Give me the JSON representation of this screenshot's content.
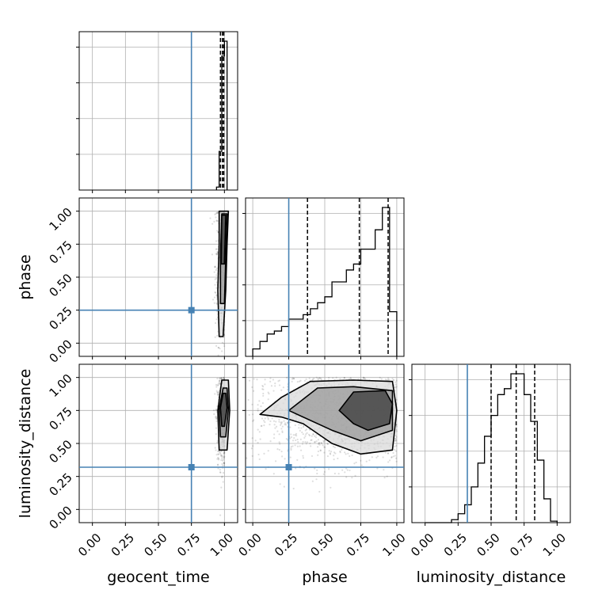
{
  "chart_data": {
    "type": "corner",
    "parameters": [
      "geocent_time",
      "phase",
      "luminosity_distance"
    ],
    "xlabels": [
      "geocent_time",
      "phase",
      "luminosity_distance"
    ],
    "ylabels": [
      "phase",
      "luminosity_distance"
    ],
    "tick_labels": [
      "0.00",
      "0.25",
      "0.50",
      "0.75",
      "1.00"
    ],
    "tick_values": [
      0,
      0.25,
      0.5,
      0.75,
      1.0
    ],
    "truths": {
      "geocent_time": 0.75,
      "phase": 0.25,
      "luminosity_distance": 0.32
    },
    "colors": {
      "truth": "#4682b4",
      "contour": "#000000",
      "grid": "#b0b0b0"
    },
    "grid": true,
    "histograms": [
      {
        "param": "geocent_time",
        "xlim": [
          -0.1,
          1.1
        ],
        "bin_edges": [
          0.94,
          0.96,
          0.98,
          1.0,
          1.02
        ],
        "counts": [
          0.02,
          0.26,
          0.9,
          1.0
        ],
        "quantiles": [
          0.97,
          0.985,
          0.995
        ]
      },
      {
        "param": "phase",
        "xlim": [
          -0.05,
          1.05
        ],
        "bin_edges": [
          0.0,
          0.05,
          0.1,
          0.15,
          0.2,
          0.25,
          0.3,
          0.35,
          0.4,
          0.45,
          0.5,
          0.55,
          0.6,
          0.65,
          0.7,
          0.75,
          0.8,
          0.85,
          0.9,
          0.95,
          1.0
        ],
        "counts": [
          0.05,
          0.1,
          0.15,
          0.17,
          0.2,
          0.25,
          0.25,
          0.28,
          0.32,
          0.36,
          0.4,
          0.5,
          0.5,
          0.58,
          0.62,
          0.72,
          0.72,
          0.85,
          1.0,
          0.3
        ],
        "quantiles": [
          0.38,
          0.74,
          0.94
        ]
      },
      {
        "param": "luminosity_distance",
        "xlim": [
          -0.1,
          1.1
        ],
        "bin_edges": [
          0.0,
          0.05,
          0.1,
          0.15,
          0.2,
          0.25,
          0.3,
          0.35,
          0.4,
          0.45,
          0.5,
          0.55,
          0.6,
          0.65,
          0.7,
          0.75,
          0.8,
          0.85,
          0.9,
          0.95,
          1.0
        ],
        "counts": [
          0.0,
          0.0,
          0.0,
          0.0,
          0.02,
          0.06,
          0.12,
          0.24,
          0.4,
          0.58,
          0.72,
          0.86,
          0.9,
          1.0,
          1.0,
          0.86,
          0.68,
          0.42,
          0.16,
          0.01
        ],
        "quantiles": [
          0.5,
          0.69,
          0.83
        ]
      }
    ],
    "scatter_panels": [
      {
        "x": "geocent_time",
        "y": "phase",
        "xlim": [
          -0.1,
          1.1
        ],
        "ylim": [
          -0.1,
          1.1
        ],
        "point_center": [
          0.98,
          0.6
        ],
        "point_spread": [
          0.025,
          0.3
        ],
        "contours": [
          [
            [
              0.96,
              0.05
            ],
            [
              0.95,
              0.4
            ],
            [
              0.96,
              0.75
            ],
            [
              0.96,
              1.0
            ],
            [
              1.03,
              1.0
            ],
            [
              1.02,
              0.75
            ],
            [
              1.01,
              0.4
            ],
            [
              0.99,
              0.05
            ]
          ],
          [
            [
              0.97,
              0.3
            ],
            [
              0.97,
              0.65
            ],
            [
              0.98,
              0.98
            ],
            [
              1.02,
              0.98
            ],
            [
              1.01,
              0.65
            ],
            [
              1.0,
              0.3
            ]
          ],
          [
            [
              0.975,
              0.6
            ],
            [
              0.98,
              0.97
            ],
            [
              1.01,
              0.97
            ],
            [
              1.0,
              0.6
            ]
          ]
        ]
      },
      {
        "x": "geocent_time",
        "y": "luminosity_distance",
        "xlim": [
          -0.1,
          1.1
        ],
        "ylim": [
          -0.1,
          1.1
        ],
        "point_center": [
          0.98,
          0.68
        ],
        "point_spread": [
          0.02,
          0.18
        ],
        "contours": [
          [
            [
              0.96,
              0.45
            ],
            [
              0.95,
              0.75
            ],
            [
              0.98,
              0.98
            ],
            [
              1.03,
              0.98
            ],
            [
              1.04,
              0.75
            ],
            [
              1.02,
              0.45
            ]
          ],
          [
            [
              0.97,
              0.55
            ],
            [
              0.96,
              0.76
            ],
            [
              0.99,
              0.92
            ],
            [
              1.02,
              0.92
            ],
            [
              1.03,
              0.76
            ],
            [
              1.01,
              0.55
            ]
          ],
          [
            [
              0.98,
              0.63
            ],
            [
              0.97,
              0.77
            ],
            [
              0.99,
              0.88
            ],
            [
              1.01,
              0.88
            ],
            [
              1.02,
              0.77
            ],
            [
              1.0,
              0.63
            ]
          ]
        ]
      },
      {
        "x": "phase",
        "y": "luminosity_distance",
        "xlim": [
          -0.05,
          1.05
        ],
        "ylim": [
          -0.1,
          1.1
        ],
        "point_center": [
          0.6,
          0.7
        ],
        "point_spread": [
          0.3,
          0.18
        ],
        "contours": [
          [
            [
              0.05,
              0.72
            ],
            [
              0.2,
              0.85
            ],
            [
              0.4,
              0.97
            ],
            [
              0.7,
              0.98
            ],
            [
              0.97,
              0.97
            ],
            [
              1.0,
              0.75
            ],
            [
              0.97,
              0.45
            ],
            [
              0.75,
              0.42
            ],
            [
              0.55,
              0.5
            ],
            [
              0.35,
              0.65
            ],
            [
              0.2,
              0.7
            ]
          ],
          [
            [
              0.25,
              0.75
            ],
            [
              0.45,
              0.92
            ],
            [
              0.7,
              0.93
            ],
            [
              0.97,
              0.9
            ],
            [
              0.97,
              0.6
            ],
            [
              0.75,
              0.52
            ],
            [
              0.55,
              0.6
            ]
          ],
          [
            [
              0.6,
              0.75
            ],
            [
              0.7,
              0.89
            ],
            [
              0.92,
              0.9
            ],
            [
              0.97,
              0.8
            ],
            [
              0.95,
              0.65
            ],
            [
              0.8,
              0.6
            ],
            [
              0.7,
              0.65
            ]
          ]
        ]
      }
    ]
  }
}
